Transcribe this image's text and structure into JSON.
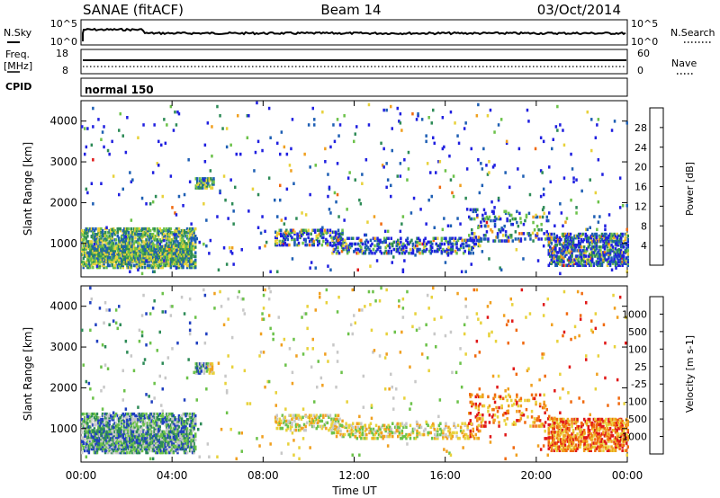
{
  "header": {
    "radar": "SANAE (fitACF)",
    "beam": "Beam 14",
    "date": "03/Oct/2014"
  },
  "panels": {
    "nsky": {
      "label": "N.Sky",
      "left_ticks": [
        "10^5",
        "10^0"
      ],
      "right_label": "N.Search",
      "right_ticks": [
        "10^5",
        "10^0"
      ]
    },
    "freq": {
      "label_line1": "Freq.",
      "label_line2": "[MHz]",
      "left_ticks": [
        "18",
        "8"
      ],
      "right_label": "Nave",
      "right_ticks": [
        "60",
        "0"
      ]
    },
    "cpid": {
      "label": "CPID",
      "value": "normal 150"
    }
  },
  "colorbars": {
    "power": {
      "title": "Power [dB]",
      "ticks": [
        "28",
        "24",
        "20",
        "16",
        "12",
        "8",
        "4"
      ],
      "colors": [
        "#2020e0",
        "#1e5fb4",
        "#2e8b57",
        "#6cc24a",
        "#e8d23c",
        "#f0a020",
        "#f06a10",
        "#e01818"
      ]
    },
    "velocity": {
      "title": "Velocity [m s-1]",
      "ticks": [
        "1000",
        "500",
        "100",
        "25",
        "-25",
        "-100",
        "-500",
        "-1000"
      ],
      "colors": [
        "#2040c0",
        "#2e8b57",
        "#6cc24a",
        "#c8c8c8",
        "#e8d23c",
        "#f0a020",
        "#f06a10",
        "#e01818"
      ]
    }
  },
  "chart_data": [
    {
      "type": "heatmap",
      "name": "power",
      "ylabel": "Slant Range [km]",
      "yticks": [
        1000,
        2000,
        3000,
        4000
      ],
      "ylim": [
        180,
        4500
      ],
      "xlim": [
        0,
        24
      ]
    },
    {
      "type": "heatmap",
      "name": "velocity",
      "ylabel": "Slant Range [km]",
      "yticks": [
        1000,
        2000,
        3000,
        4000
      ],
      "ylim": [
        180,
        4500
      ],
      "xlim": [
        0,
        24
      ]
    }
  ],
  "xaxis": {
    "label": "Time UT",
    "ticks": [
      "00:00",
      "04:00",
      "08:00",
      "12:00",
      "16:00",
      "20:00",
      "00:00"
    ],
    "tick_hours": [
      0,
      4,
      8,
      12,
      16,
      20,
      24
    ]
  }
}
